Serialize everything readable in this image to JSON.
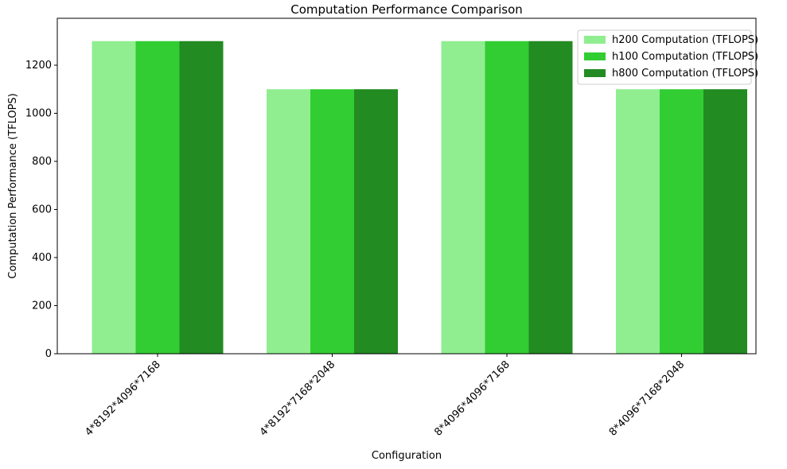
{
  "chart_data": {
    "type": "bar",
    "title": "Computation Performance Comparison",
    "x_label": "Configuration",
    "y_label": "Computation Performance (TFLOPS)",
    "categories": [
      "4*8192*4096*7168",
      "4*8192*7168*2048",
      "8*4096*4096*7168",
      "8*4096*7168*2048"
    ],
    "series": [
      {
        "name": "h200 Computation (TFLOPS)",
        "color": "#90ee90",
        "values": [
          1300,
          1100,
          1300,
          1100
        ]
      },
      {
        "name": "h100 Computation (TFLOPS)",
        "color": "#32cd32",
        "values": [
          1300,
          1100,
          1300,
          1100
        ]
      },
      {
        "name": "h800 Computation (TFLOPS)",
        "color": "#228b22",
        "values": [
          1300,
          1100,
          1300,
          1100
        ]
      }
    ],
    "ylim": [
      0,
      1395
    ],
    "yticks": [
      0,
      200,
      400,
      600,
      800,
      1000,
      1200
    ],
    "legend": "upper right"
  }
}
